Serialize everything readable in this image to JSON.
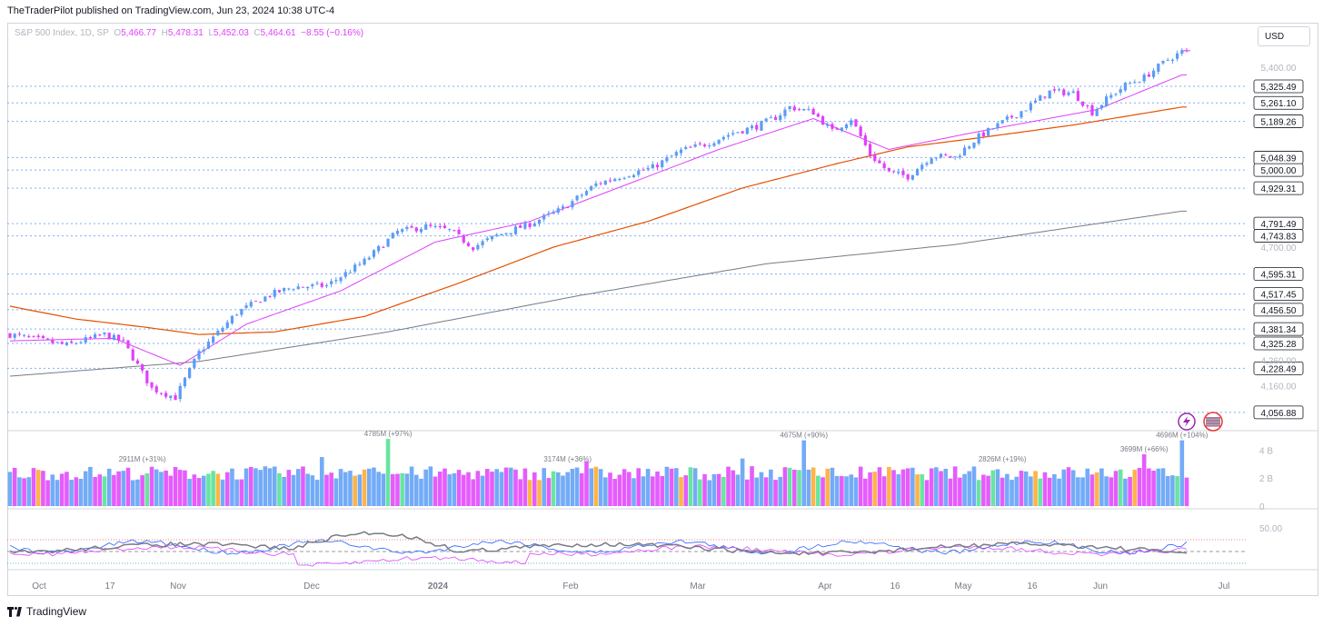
{
  "header": {
    "published": "TheTraderPilot published on TradingView.com, Jun 23, 2024 10:38 UTC-4"
  },
  "legend": {
    "symbol": "S&P 500 Index, 1D, SP",
    "o_label": "O",
    "o": "5,466.77",
    "h_label": "H",
    "h": "5,478.31",
    "l_label": "L",
    "l": "5,452.03",
    "c_label": "C",
    "c": "5,464.61",
    "change": "−8.55 (−0.16%)"
  },
  "currency": "USD",
  "footer": {
    "brand": "TradingView"
  },
  "colors": {
    "up": "#5b9cf6",
    "down": "#e040fb",
    "ema_fast": "#e040fb",
    "ema_mid": "#e65100",
    "sma_slow": "#787b86",
    "level_line": "#5b9cf6",
    "vol_green": "#4ee08f",
    "vol_orange": "#ffa726"
  },
  "chart_data": {
    "type": "candlestick",
    "x_axis_labels": [
      "Oct",
      "17",
      "Nov",
      "Dec",
      "2024",
      "Feb",
      "Mar",
      "Apr",
      "16",
      "May",
      "16",
      "Jun",
      "Jul"
    ],
    "price_ticks": [
      "5,400.00",
      "4,700.00",
      "4,260.00",
      "4,160.00"
    ],
    "price_levels": [
      "5,325.49",
      "5,261.10",
      "5,189.26",
      "5,048.39",
      "5,000.00",
      "4,929.31",
      "4,791.49",
      "4,743.83",
      "4,595.31",
      "4,517.45",
      "4,456.50",
      "4,381.34",
      "4,325.28",
      "4,228.49",
      "4,056.88"
    ],
    "price_range": [
      4000,
      5520
    ],
    "anchors": [
      [
        0,
        4360
      ],
      [
        12,
        4318
      ],
      [
        20,
        4360
      ],
      [
        24,
        4330
      ],
      [
        30,
        4150
      ],
      [
        35,
        4115
      ],
      [
        40,
        4290
      ],
      [
        48,
        4445
      ],
      [
        55,
        4515
      ],
      [
        60,
        4545
      ],
      [
        67,
        4550
      ],
      [
        75,
        4645
      ],
      [
        82,
        4760
      ],
      [
        88,
        4780
      ],
      [
        93,
        4765
      ],
      [
        98,
        4700
      ],
      [
        103,
        4745
      ],
      [
        110,
        4790
      ],
      [
        117,
        4850
      ],
      [
        124,
        4945
      ],
      [
        130,
        4980
      ],
      [
        136,
        5010
      ],
      [
        142,
        5075
      ],
      [
        147,
        5100
      ],
      [
        153,
        5145
      ],
      [
        158,
        5170
      ],
      [
        162,
        5205
      ],
      [
        165,
        5245
      ],
      [
        170,
        5225
      ],
      [
        174,
        5150
      ],
      [
        178,
        5200
      ],
      [
        182,
        5060
      ],
      [
        186,
        4990
      ],
      [
        190,
        4975
      ],
      [
        195,
        5055
      ],
      [
        200,
        5050
      ],
      [
        205,
        5130
      ],
      [
        210,
        5185
      ],
      [
        215,
        5240
      ],
      [
        220,
        5305
      ],
      [
        225,
        5300
      ],
      [
        229,
        5225
      ],
      [
        232,
        5275
      ],
      [
        236,
        5330
      ],
      [
        240,
        5360
      ],
      [
        245,
        5430
      ],
      [
        248,
        5460
      ]
    ],
    "ema_fast_anchors": [
      [
        0,
        4335
      ],
      [
        10,
        4340
      ],
      [
        22,
        4345
      ],
      [
        36,
        4240
      ],
      [
        50,
        4400
      ],
      [
        70,
        4530
      ],
      [
        90,
        4720
      ],
      [
        110,
        4800
      ],
      [
        130,
        4940
      ],
      [
        150,
        5080
      ],
      [
        170,
        5200
      ],
      [
        186,
        5080
      ],
      [
        205,
        5150
      ],
      [
        230,
        5235
      ],
      [
        248,
        5370
      ]
    ],
    "ema_mid_anchors": [
      [
        0,
        4470
      ],
      [
        14,
        4420
      ],
      [
        28,
        4390
      ],
      [
        40,
        4360
      ],
      [
        56,
        4370
      ],
      [
        75,
        4430
      ],
      [
        95,
        4560
      ],
      [
        115,
        4700
      ],
      [
        135,
        4800
      ],
      [
        155,
        4930
      ],
      [
        175,
        5025
      ],
      [
        190,
        5090
      ],
      [
        205,
        5125
      ],
      [
        225,
        5175
      ],
      [
        248,
        5245
      ]
    ],
    "sma_slow_anchors": [
      [
        0,
        4198
      ],
      [
        40,
        4255
      ],
      [
        80,
        4370
      ],
      [
        120,
        4510
      ],
      [
        160,
        4635
      ],
      [
        200,
        4710
      ],
      [
        248,
        4840
      ]
    ],
    "volume_axis": [
      "4 B",
      "2 B",
      "0"
    ],
    "volume_labels": [
      {
        "text": "2911M (+31%)",
        "bar": 28
      },
      {
        "text": "4785M (+97%)",
        "bar": 80
      },
      {
        "text": "3174M (+36%)",
        "bar": 118
      },
      {
        "text": "4675M (+90%)",
        "bar": 168
      },
      {
        "text": "2826M (+19%)",
        "bar": 210
      },
      {
        "text": "3699M (+66%)",
        "bar": 240
      },
      {
        "text": "4696M (+104%)",
        "bar": 248
      }
    ],
    "volume_spikes": [
      [
        80,
        4.8
      ],
      [
        168,
        4.7
      ],
      [
        248,
        4.7
      ],
      [
        240,
        3.7
      ],
      [
        122,
        3.2
      ],
      [
        66,
        3.5
      ],
      [
        155,
        3.4
      ]
    ],
    "osc_axis": [
      "50.00"
    ]
  }
}
